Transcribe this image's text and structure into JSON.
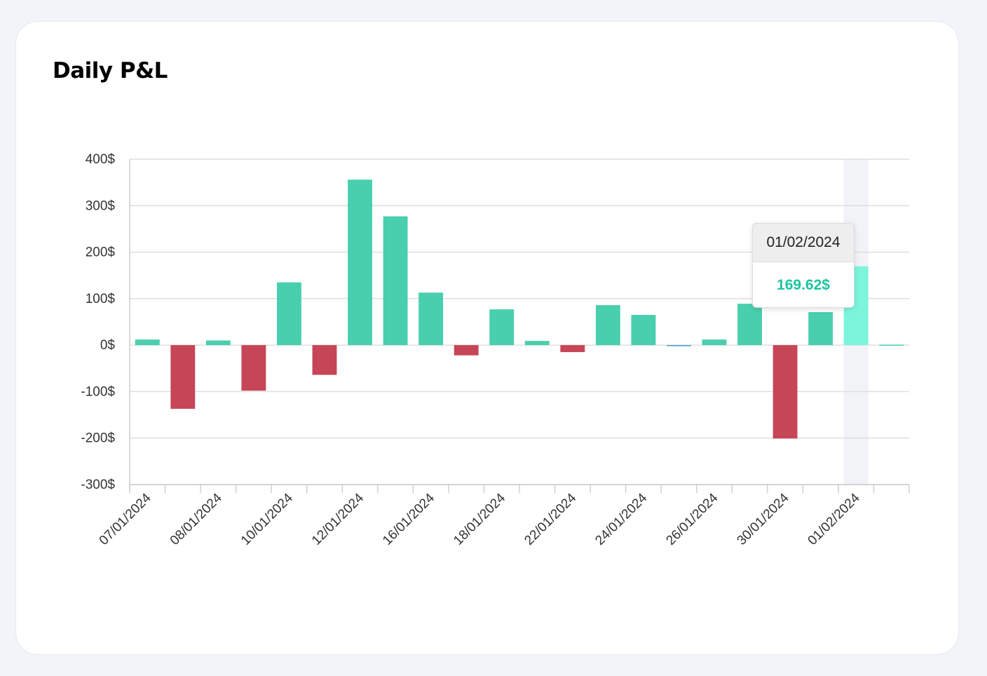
{
  "card": {
    "title": "Daily P&L"
  },
  "chart_data": {
    "type": "bar",
    "title": "Daily P&L",
    "xlabel": "",
    "ylabel": "",
    "ylim": [
      -300,
      400
    ],
    "yticks": [
      400,
      300,
      200,
      100,
      0,
      -100,
      -200,
      -300
    ],
    "ytick_suffix": "$",
    "grid": true,
    "categories": [
      "07/01/2024",
      "",
      "08/01/2024",
      "",
      "10/01/2024",
      "",
      "12/01/2024",
      "",
      "16/01/2024",
      "",
      "18/01/2024",
      "",
      "22/01/2024",
      "",
      "24/01/2024",
      "",
      "26/01/2024",
      "",
      "30/01/2024",
      "",
      "01/02/2024",
      ""
    ],
    "values": [
      12,
      -137,
      10,
      -98,
      135,
      -64,
      356,
      277,
      113,
      -22,
      77,
      9,
      -15,
      86,
      65,
      -1,
      12,
      89,
      -201,
      71,
      169.62,
      1
    ],
    "colors": {
      "positive": "#49cfad",
      "negative": "#c64556",
      "highlight": "#7bf5dc",
      "zero_tiny": "#4b9cd3",
      "hover_band": "#f1f3f7"
    },
    "highlight_index": 20
  },
  "tooltip": {
    "date": "01/02/2024",
    "value": "169.62$",
    "value_color": "#1dc4a0"
  }
}
